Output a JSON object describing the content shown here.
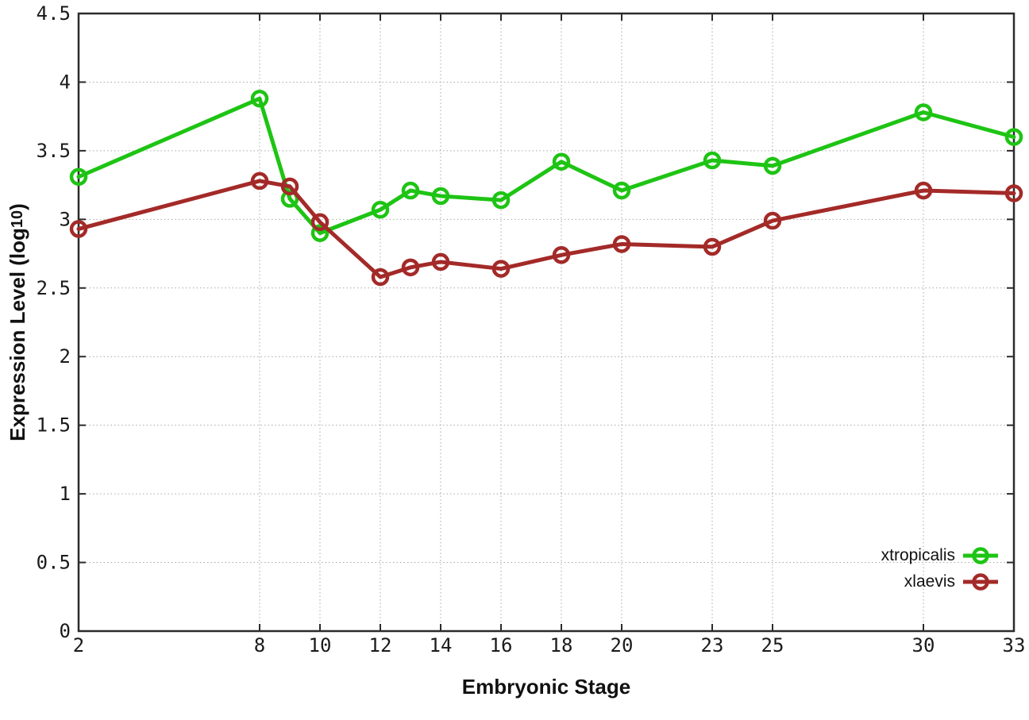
{
  "figure": {
    "background": "#ffffff"
  },
  "chart_data": {
    "type": "line",
    "xlabel": "Embryonic Stage",
    "ylabel": "Expression Level (log10)",
    "ylabel_parts": {
      "pre": "Expression Level (log",
      "sub": "10",
      "post": ")"
    },
    "x": [
      2,
      8,
      9,
      10,
      12,
      13,
      14,
      16,
      18,
      20,
      23,
      25,
      30,
      33
    ],
    "series": [
      {
        "name": "xtropicalis",
        "color": "#1ec414",
        "marker": "open-circle",
        "values": [
          3.31,
          3.88,
          3.15,
          2.9,
          3.07,
          3.21,
          3.17,
          3.14,
          3.42,
          3.21,
          3.43,
          3.39,
          3.78,
          3.6
        ]
      },
      {
        "name": "xlaevis",
        "color": "#a32a28",
        "marker": "open-circle",
        "values": [
          2.93,
          3.28,
          3.24,
          2.98,
          2.58,
          2.65,
          2.69,
          2.64,
          2.74,
          2.82,
          2.8,
          2.99,
          3.21,
          3.19
        ]
      }
    ],
    "xlim": [
      2,
      33
    ],
    "ylim": [
      0,
      4.5
    ],
    "xticks": [
      2,
      8,
      10,
      12,
      14,
      16,
      18,
      20,
      23,
      25,
      30,
      33
    ],
    "yticks": [
      0,
      0.5,
      1,
      1.5,
      2,
      2.5,
      3,
      3.5,
      4,
      4.5
    ],
    "grid": true,
    "legend_position": "bottom-right",
    "styles": {
      "axis_color": "#2b2b2b",
      "grid_color": "#a8a8a8",
      "text_color": "#1a1a1a"
    }
  }
}
